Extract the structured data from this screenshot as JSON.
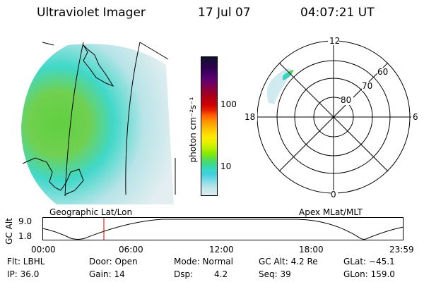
{
  "header": {
    "title": "Ultraviolet Imager",
    "date": "17 Jul 07",
    "time": "04:07:21 UT"
  },
  "geo_panel": {
    "label": "Geographic Lat/Lon"
  },
  "colorbar": {
    "unit_label": "photon cm⁻²s⁻¹",
    "ticks": [
      "100",
      "10"
    ],
    "colors": [
      "#101030",
      "#200840",
      "#300050",
      "#400060",
      "#5a0070",
      "#720060",
      "#8a0040",
      "#a00020",
      "#b80010",
      "#d00000",
      "#e82000",
      "#ff6000",
      "#ff9000",
      "#ffb000",
      "#ffd000",
      "#ffe800",
      "#e8f000",
      "#c0f000",
      "#90e800",
      "#60e040",
      "#40d880",
      "#38d8c0",
      "#40d0e0",
      "#70d8e8",
      "#a8e0e8",
      "#c8e8ec",
      "#dcecee"
    ]
  },
  "polar_panel": {
    "label": "Apex MLat/MLT",
    "mlt_labels": [
      "12",
      "18",
      "6",
      "0"
    ],
    "lat_labels": [
      "60",
      "70",
      "80"
    ]
  },
  "timeline": {
    "axis_label": "GC Alt",
    "y_ticks": [
      "9.0",
      "1.8"
    ],
    "x_ticks": [
      "00:00",
      "06:00",
      "12:00",
      "18:00",
      "23:59"
    ],
    "marker_time": "04:07"
  },
  "status": {
    "row1": {
      "filter": "Flt: LBHL",
      "door": "Door: Open",
      "mode": "Mode: Normal",
      "gc_alt": "GC Alt: 4.2 Re",
      "glat": "GLat: −45.1"
    },
    "row2": {
      "ip": "IP: 36.0",
      "gain": "Gain: 14",
      "dsp_label": "Dsp:",
      "dsp_value": "4.2",
      "seq": "Seq: 39",
      "glon": "GLon: 159.0"
    }
  }
}
